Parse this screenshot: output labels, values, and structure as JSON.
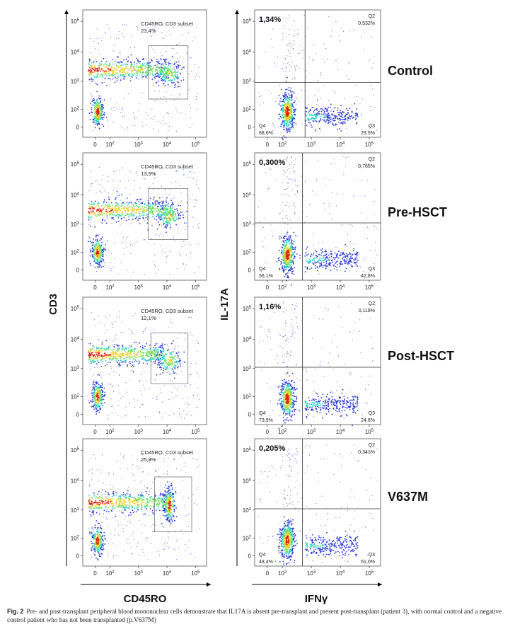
{
  "chart_data": [
    {
      "type": "scatter",
      "subtype": "flow-cytometry-density",
      "row": "Control",
      "xlabel": "CD45RO",
      "ylabel": "CD3",
      "x_ticks": [
        "0",
        "10^2",
        "10^3",
        "10^4",
        "10^5"
      ],
      "y_ticks": [
        "0",
        "10^2",
        "10^3",
        "10^4",
        "10^5"
      ],
      "gate_label": "CD45RO, CD3 subset",
      "gate_value": "23,4%"
    },
    {
      "type": "scatter",
      "subtype": "flow-cytometry-density",
      "row": "Pre-HSCT",
      "xlabel": "CD45RO",
      "ylabel": "CD3",
      "x_ticks": [
        "0",
        "10^2",
        "10^3",
        "10^4",
        "10^5"
      ],
      "y_ticks": [
        "0",
        "10^2",
        "10^3",
        "10^4",
        "10^5"
      ],
      "gate_label": "CD45RO, CD3 subset",
      "gate_value": "13,9%"
    },
    {
      "type": "scatter",
      "subtype": "flow-cytometry-density",
      "row": "Post-HSCT",
      "xlabel": "CD45RO",
      "ylabel": "CD3",
      "x_ticks": [
        "0",
        "10^2",
        "10^3",
        "10^4",
        "10^5"
      ],
      "y_ticks": [
        "0",
        "10^2",
        "10^3",
        "10^4",
        "10^5"
      ],
      "gate_label": "CD45RO, CD3 subset",
      "gate_value": "12,1%"
    },
    {
      "type": "scatter",
      "subtype": "flow-cytometry-density",
      "row": "V637M",
      "xlabel": "CD45RO",
      "ylabel": "CD3",
      "x_ticks": [
        "0",
        "10^2",
        "10^3",
        "10^4",
        "10^5"
      ],
      "y_ticks": [
        "0",
        "10^2",
        "10^3",
        "10^4",
        "10^5"
      ],
      "gate_label": "CD45RO, CD3 subset",
      "gate_value": "25,8%"
    },
    {
      "type": "scatter",
      "subtype": "flow-cytometry-quadrant",
      "row": "Control",
      "xlabel": "IFNγ",
      "ylabel": "IL-17A",
      "x_ticks": [
        "0",
        "10^2",
        "10^3",
        "10^4",
        "10^5"
      ],
      "y_ticks": [
        "0",
        "10^2",
        "10^3",
        "10^4",
        "10^5"
      ],
      "quadrants": {
        "Q1": "1,34%",
        "Q2": {
          "name": "Q2",
          "value": "0,532%"
        },
        "Q3": {
          "name": "Q3",
          "value": "29,5%"
        },
        "Q4": {
          "name": "Q4",
          "value": "68,6%"
        }
      }
    },
    {
      "type": "scatter",
      "subtype": "flow-cytometry-quadrant",
      "row": "Pre-HSCT",
      "xlabel": "IFNγ",
      "ylabel": "IL-17A",
      "x_ticks": [
        "0",
        "10^2",
        "10^3",
        "10^4",
        "10^5"
      ],
      "y_ticks": [
        "0",
        "10^2",
        "10^3",
        "10^4",
        "10^5"
      ],
      "quadrants": {
        "Q1": "0,300%",
        "Q2": {
          "name": "Q2",
          "value": "0,765%"
        },
        "Q3": {
          "name": "Q3",
          "value": "42,8%"
        },
        "Q4": {
          "name": "Q4",
          "value": "56,1%"
        }
      }
    },
    {
      "type": "scatter",
      "subtype": "flow-cytometry-quadrant",
      "row": "Post-HSCT",
      "xlabel": "IFNγ",
      "ylabel": "IL-17A",
      "x_ticks": [
        "0",
        "10^2",
        "10^3",
        "10^4",
        "10^5"
      ],
      "y_ticks": [
        "0",
        "10^2",
        "10^3",
        "10^4",
        "10^5"
      ],
      "quadrants": {
        "Q1": "1,16%",
        "Q2": {
          "name": "Q2",
          "value": "0,118%"
        },
        "Q3": {
          "name": "Q3",
          "value": "24,8%"
        },
        "Q4": {
          "name": "Q4",
          "value": "73,9%"
        }
      }
    },
    {
      "type": "scatter",
      "subtype": "flow-cytometry-quadrant",
      "row": "V637M",
      "xlabel": "IFNγ",
      "ylabel": "IL-17A",
      "x_ticks": [
        "0",
        "10^2",
        "10^3",
        "10^4",
        "10^5"
      ],
      "y_ticks": [
        "0",
        "10^2",
        "10^3",
        "10^4",
        "10^5"
      ],
      "quadrants": {
        "Q1": "0,205%",
        "Q2": {
          "name": "Q2",
          "value": "0,341%"
        },
        "Q3": {
          "name": "Q3",
          "value": "51,0%"
        },
        "Q4": {
          "name": "Q4",
          "value": "48,4%"
        }
      }
    }
  ],
  "axes": {
    "left_y": "CD3",
    "left_x": "CD45RO",
    "right_y": "IL-17A",
    "right_x": "IFNγ"
  },
  "row_labels": [
    "Control",
    "Pre-HSCT",
    "Post-HSCT",
    "V637M"
  ],
  "caption": {
    "label": "Fig. 2",
    "text": "Pre- and post-transplant peripheral blood mononuclear cells demonstrate that IL17A is absent pre-transplant and present post-transplant (patient 3), with normal control and a negative control patient who has not been transplanted (p.V637M)"
  },
  "colors": {
    "dot_low": "#2b3bd6",
    "dot_mid": "#1fd4c8",
    "dot_high": "#f0d020",
    "dot_peak": "#e02010",
    "axis": "#000000",
    "frame": "#555555"
  }
}
